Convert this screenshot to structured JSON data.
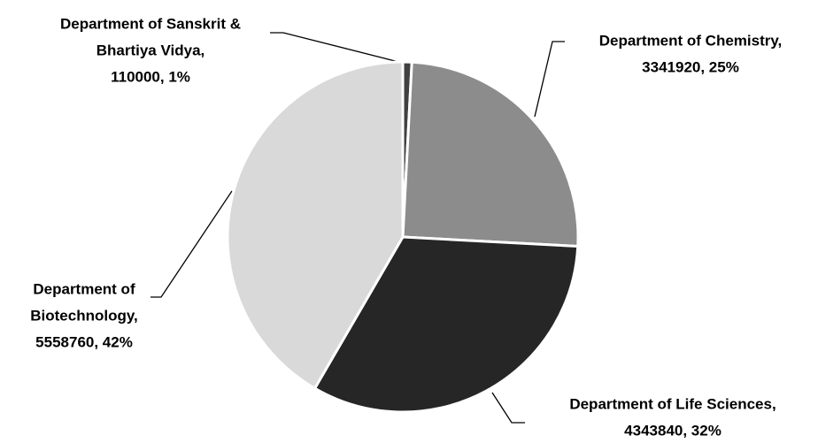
{
  "chart_data": {
    "type": "pie",
    "labels": [
      [
        "Department of Sanskrit &",
        "Bhartiya Vidya,",
        "110000, 1%"
      ],
      [
        "Department of Chemistry,",
        "3341920, 25%"
      ],
      [
        "Department of Life Sciences,",
        "4343840, 32%"
      ],
      [
        "Department of",
        "Biotechnology,",
        "5558760, 42%"
      ]
    ],
    "values": [
      110000,
      3341920,
      4343840,
      5558760
    ],
    "colors": [
      "#404040",
      "#8c8c8c",
      "#262626",
      "#d9d9d9"
    ]
  }
}
